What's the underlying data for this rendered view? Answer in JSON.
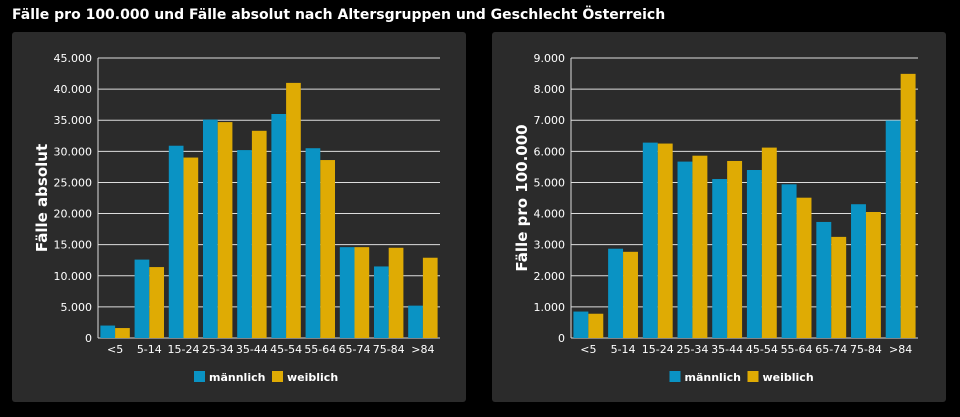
{
  "title": "Fälle pro 100.000 und Fälle absolut nach Altersgruppen und Geschlecht Österreich",
  "colors": {
    "männlich": "#0a93c4",
    "weiblich": "#dfab04"
  },
  "chart_data": [
    {
      "type": "bar",
      "ylabel": "Fälle absolut",
      "ylim": [
        0,
        45000
      ],
      "ytick_step": 5000,
      "grid": true,
      "legend": "bottom",
      "categories": [
        "<5",
        "5-14",
        "15-24",
        "25-34",
        "35-44",
        "45-54",
        "55-64",
        "65-74",
        "75-84",
        ">84"
      ],
      "series": [
        {
          "name": "männlich",
          "values": [
            2000,
            12600,
            30900,
            35100,
            30200,
            36000,
            30500,
            14600,
            11500,
            5200
          ]
        },
        {
          "name": "weiblich",
          "values": [
            1600,
            11400,
            29000,
            34700,
            33300,
            41000,
            28600,
            14600,
            14500,
            12900
          ]
        }
      ]
    },
    {
      "type": "bar",
      "ylabel": "Fälle pro 100.000",
      "ylim": [
        0,
        9000
      ],
      "ytick_step": 1000,
      "grid": true,
      "legend": "bottom",
      "categories": [
        "<5",
        "5-14",
        "15-24",
        "25-34",
        "35-44",
        "45-54",
        "55-64",
        "65-74",
        "75-84",
        ">84"
      ],
      "series": [
        {
          "name": "männlich",
          "values": [
            850,
            2870,
            6280,
            5670,
            5110,
            5400,
            4940,
            3730,
            4300,
            6990
          ]
        },
        {
          "name": "weiblich",
          "values": [
            780,
            2770,
            6250,
            5860,
            5690,
            6120,
            4510,
            3250,
            4050,
            8490
          ]
        }
      ]
    }
  ]
}
